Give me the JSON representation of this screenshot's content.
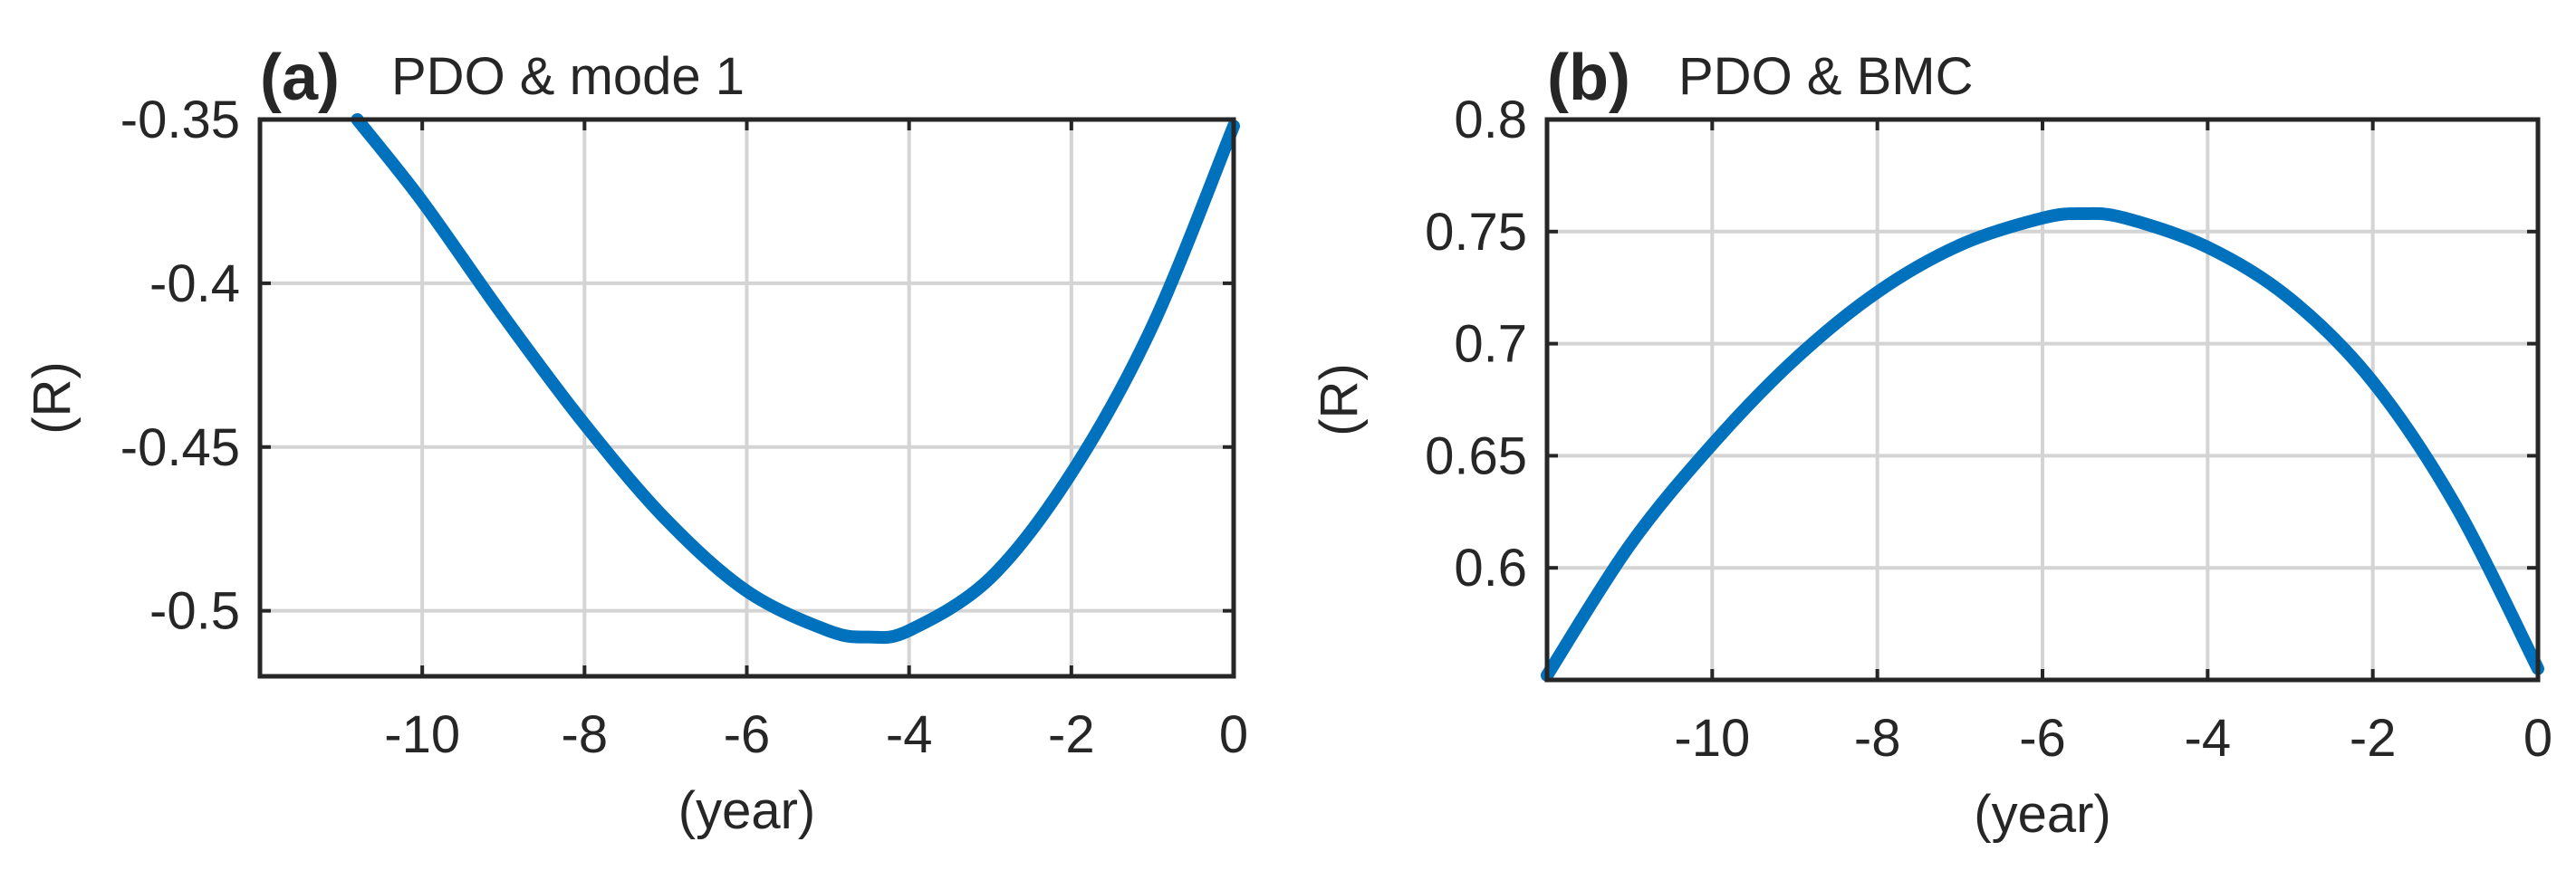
{
  "chart_data": [
    {
      "type": "line",
      "panel_label": "(a)",
      "title": "PDO & mode 1",
      "xlabel": "(year)",
      "ylabel": "(R)",
      "xlim": [
        -12,
        0
      ],
      "ylim": [
        -0.52,
        -0.35
      ],
      "xticks": [
        -10,
        -8,
        -6,
        -4,
        -2,
        0
      ],
      "xtick_labels": [
        "-10",
        "-8",
        "-6",
        "-4",
        "-2",
        "0"
      ],
      "yticks": [
        -0.35,
        -0.4,
        -0.45,
        -0.5
      ],
      "ytick_labels": [
        "-0.35",
        "-0.4",
        "-0.45",
        "-0.5"
      ],
      "grid": true,
      "series": [
        {
          "color": "#0072bd",
          "x": [
            -10.8,
            -10,
            -9,
            -8,
            -7,
            -6,
            -5,
            -4.5,
            -4,
            -3,
            -2,
            -1,
            0
          ],
          "y": [
            -0.35,
            -0.375,
            -0.41,
            -0.443,
            -0.472,
            -0.494,
            -0.506,
            -0.508,
            -0.506,
            -0.49,
            -0.458,
            -0.413,
            -0.352
          ]
        }
      ]
    },
    {
      "type": "line",
      "panel_label": "(b)",
      "title": "PDO & BMC",
      "xlabel": "(year)",
      "ylabel": "(R)",
      "xlim": [
        -12,
        0
      ],
      "ylim": [
        0.55,
        0.8
      ],
      "xticks": [
        -10,
        -8,
        -6,
        -4,
        -2,
        0
      ],
      "xtick_labels": [
        "-10",
        "-8",
        "-6",
        "-4",
        "-2",
        "0"
      ],
      "yticks": [
        0.6,
        0.65,
        0.7,
        0.75,
        0.8
      ],
      "ytick_labels": [
        "0.6",
        "0.65",
        "0.7",
        "0.75",
        "0.8"
      ],
      "grid": true,
      "series": [
        {
          "color": "#0072bd",
          "x": [
            -12,
            -11,
            -10,
            -9,
            -8,
            -7,
            -6,
            -5.5,
            -5,
            -4,
            -3,
            -2,
            -1,
            0
          ],
          "y": [
            0.552,
            0.61,
            0.655,
            0.693,
            0.723,
            0.744,
            0.756,
            0.758,
            0.756,
            0.743,
            0.72,
            0.683,
            0.628,
            0.555
          ]
        }
      ]
    }
  ]
}
